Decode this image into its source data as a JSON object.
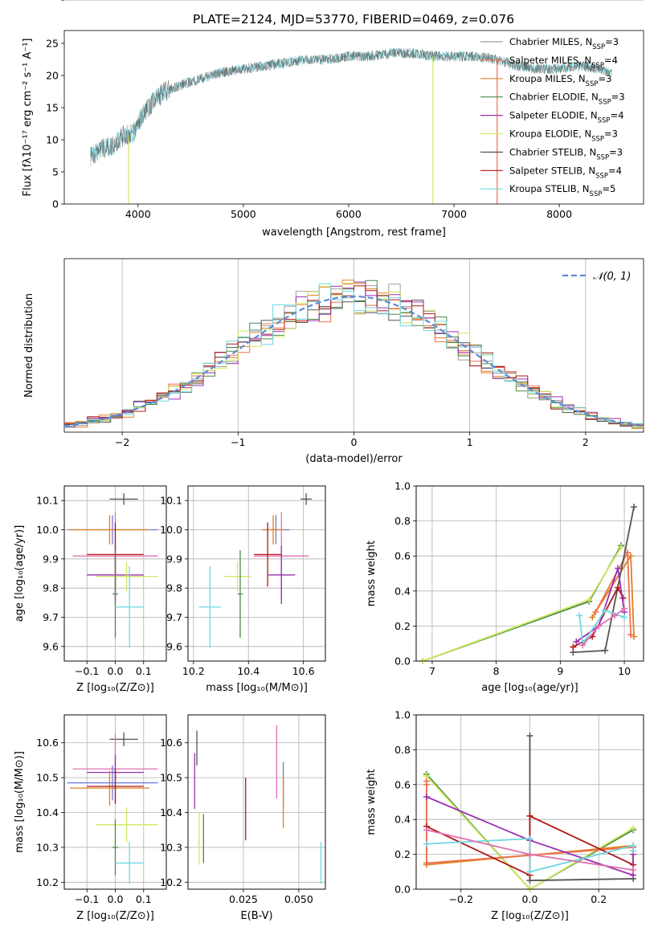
{
  "title": "PLATE=2124, MJD=53770, FIBERID=0469, z=0.076",
  "colors": {
    "chabrier_miles": "#9e9e9e",
    "salpeter_miles": "#f07050",
    "kroupa_miles": "#e08020",
    "chabrier_elodie": "#4a8a4a",
    "salpeter_elodie": "#9a30b0",
    "kroupa_elodie": "#d0e860",
    "chabrier_stelib": "#555555",
    "salpeter_stelib": "#b01818",
    "kroupa_stelib": "#70d8e0",
    "normal_curve": "#5b8ad6",
    "pink": "#e070b0",
    "blue": "#6878e0"
  },
  "chart_data": [
    {
      "id": "spectrum",
      "type": "line",
      "title": "PLATE=2124, MJD=53770, FIBERID=0469, z=0.076",
      "xlabel": "wavelength [Angstrom, rest frame]",
      "ylabel": "Flux [fλ10⁻¹⁷ erg cm⁻² s⁻¹ A⁻¹]",
      "xlim": [
        3300,
        8800
      ],
      "ylim": [
        0,
        27
      ],
      "xticks": [
        "4000",
        "5000",
        "6000",
        "7000",
        "8000"
      ],
      "yticks": [
        "0",
        "5",
        "10",
        "15",
        "20",
        "25"
      ],
      "legend_position": "right",
      "legend": [
        {
          "label": "Chabrier MILES, N",
          "sub": "SSP",
          "tail": "=3",
          "color": "chabrier_miles"
        },
        {
          "label": "Salpeter MILES, N",
          "sub": "SSP",
          "tail": "=4",
          "color": "salpeter_miles"
        },
        {
          "label": "Kroupa MILES, N",
          "sub": "SSP",
          "tail": "=3",
          "color": "kroupa_miles"
        },
        {
          "label": "Chabrier ELODIE, N",
          "sub": "SSP",
          "tail": "=3",
          "color": "chabrier_elodie"
        },
        {
          "label": "Salpeter ELODIE, N",
          "sub": "SSP",
          "tail": "=4",
          "color": "salpeter_elodie"
        },
        {
          "label": "Kroupa ELODIE, N",
          "sub": "SSP",
          "tail": "=3",
          "color": "kroupa_elodie"
        },
        {
          "label": "Chabrier STELIB, N",
          "sub": "SSP",
          "tail": "=3",
          "color": "chabrier_stelib"
        },
        {
          "label": "Salpeter STELIB, N",
          "sub": "SSP",
          "tail": "=4",
          "color": "salpeter_stelib"
        },
        {
          "label": "Kroupa STELIB, N",
          "sub": "SSP",
          "tail": "=5",
          "color": "kroupa_stelib"
        }
      ],
      "envelope": {
        "x": [
          3550,
          3650,
          3750,
          3850,
          3950,
          4050,
          4150,
          4250,
          4400,
          4600,
          4800,
          5000,
          5200,
          5400,
          5600,
          5800,
          6000,
          6200,
          6400,
          6600,
          6800,
          7000,
          7200,
          7400,
          7600,
          7800,
          8000,
          8200,
          8400,
          8500
        ],
        "y": [
          7.5,
          8.5,
          9.0,
          10.5,
          11.0,
          14.0,
          16.0,
          17.5,
          18.5,
          19.5,
          20.5,
          21.0,
          21.5,
          22.0,
          22.5,
          22.5,
          23.0,
          23.0,
          23.5,
          23.5,
          23.0,
          23.0,
          23.0,
          22.5,
          21.5,
          21.0,
          21.0,
          21.5,
          21.0,
          20.5
        ]
      },
      "dips": [
        {
          "x": 3910,
          "y": 0,
          "color": "kroupa_elodie"
        },
        {
          "x": 6800,
          "y": 0,
          "color": "kroupa_elodie"
        },
        {
          "x": 7410,
          "y": 0,
          "color": "salpeter_miles"
        }
      ]
    },
    {
      "id": "residuals",
      "type": "histogram",
      "xlabel": "(data-model)/error",
      "ylabel": "Normed distribution",
      "xlim": [
        -2.5,
        2.5
      ],
      "ylim": [
        0,
        0.51
      ],
      "xticks": [
        {
          "v": -2,
          "t": "−2"
        },
        {
          "v": -1,
          "t": "−1"
        },
        {
          "v": 0,
          "t": "0"
        },
        {
          "v": 1,
          "t": "1"
        },
        {
          "v": 2,
          "t": "2"
        }
      ],
      "yticks": [
        "0.0",
        "0.1",
        "0.2",
        "0.3",
        "0.4",
        "0.5"
      ],
      "legend": "𝒩(0, 1)",
      "bin_width": 0.1,
      "series_colors": [
        "chabrier_miles",
        "salpeter_miles",
        "kroupa_miles",
        "chabrier_elodie",
        "salpeter_elodie",
        "kroupa_elodie",
        "chabrier_stelib",
        "salpeter_stelib",
        "kroupa_stelib"
      ]
    },
    {
      "id": "age-vs-z",
      "type": "errorbar",
      "xlabel": "Z [log₁₀(Z/Z⊙)]",
      "ylabel": "age  [log₁₀(age/yr)]",
      "xlim": [
        -0.18,
        0.18
      ],
      "ylim": [
        9.55,
        10.15
      ],
      "xticks": [
        {
          "v": -0.1,
          "t": "−0.1"
        },
        {
          "v": 0.0,
          "t": "0.0"
        },
        {
          "v": 0.1,
          "t": "0.1"
        }
      ],
      "yticks": [
        {
          "v": 9.6,
          "t": "9.6"
        },
        {
          "v": 9.7,
          "t": "9.7"
        },
        {
          "v": 9.8,
          "t": "9.8"
        },
        {
          "v": 9.9,
          "t": "9.9"
        },
        {
          "v": 10.0,
          "t": "10.0"
        },
        {
          "v": 10.1,
          "t": "10.1"
        }
      ],
      "points": [
        {
          "x": 0.03,
          "y": 10.105,
          "xerr": 0.05,
          "yerr": 0.02,
          "color": "chabrier_stelib"
        },
        {
          "x": -0.01,
          "y": 10.0,
          "xerr": 0.16,
          "yerr": 0.05,
          "color": "blue"
        },
        {
          "x": -0.02,
          "y": 10.0,
          "xerr": 0.14,
          "yerr": 0.05,
          "color": "kroupa_miles"
        },
        {
          "x": 0.0,
          "y": 9.91,
          "xerr": 0.15,
          "yerr": 0.15,
          "color": "pink"
        },
        {
          "x": 0.0,
          "y": 9.915,
          "xerr": 0.1,
          "yerr": 0.11,
          "color": "salpeter_stelib"
        },
        {
          "x": 0.0,
          "y": 9.845,
          "xerr": 0.1,
          "yerr": 0.1,
          "color": "salpeter_elodie"
        },
        {
          "x": 0.04,
          "y": 9.84,
          "xerr": 0.11,
          "yerr": 0.05,
          "color": "kroupa_elodie"
        },
        {
          "x": 0.0,
          "y": 9.78,
          "xerr": 0.01,
          "yerr": 0.15,
          "color": "chabrier_elodie"
        },
        {
          "x": 0.05,
          "y": 9.735,
          "xerr": 0.05,
          "yerr": 0.14,
          "color": "kroupa_stelib"
        }
      ]
    },
    {
      "id": "age-vs-mass",
      "type": "errorbar",
      "xlabel": "mass [log₁₀(M/M⊙)]",
      "ylabel": "",
      "xlim": [
        10.18,
        10.68
      ],
      "ylim": [
        9.55,
        10.15
      ],
      "xticks": [
        {
          "v": 10.2,
          "t": "10.2"
        },
        {
          "v": 10.4,
          "t": "10.4"
        },
        {
          "v": 10.6,
          "t": "10.6"
        }
      ],
      "yticks": [
        {
          "v": 9.6,
          "t": "9.6"
        },
        {
          "v": 9.7,
          "t": "9.7"
        },
        {
          "v": 9.8,
          "t": "9.8"
        },
        {
          "v": 9.9,
          "t": "9.9"
        },
        {
          "v": 10.0,
          "t": "10.0"
        },
        {
          "v": 10.1,
          "t": "10.1"
        }
      ],
      "points": [
        {
          "x": 10.61,
          "y": 10.105,
          "xerr": 0.02,
          "yerr": 0.02,
          "color": "chabrier_stelib"
        },
        {
          "x": 10.5,
          "y": 10.0,
          "xerr": 0.05,
          "yerr": 0.05,
          "color": "blue"
        },
        {
          "x": 10.49,
          "y": 10.0,
          "xerr": 0.04,
          "yerr": 0.05,
          "color": "kroupa_miles"
        },
        {
          "x": 10.52,
          "y": 9.91,
          "xerr": 0.1,
          "yerr": 0.15,
          "color": "pink"
        },
        {
          "x": 10.47,
          "y": 9.915,
          "xerr": 0.05,
          "yerr": 0.11,
          "color": "salpeter_stelib"
        },
        {
          "x": 10.52,
          "y": 9.845,
          "xerr": 0.05,
          "yerr": 0.1,
          "color": "salpeter_elodie"
        },
        {
          "x": 10.36,
          "y": 9.84,
          "xerr": 0.05,
          "yerr": 0.05,
          "color": "kroupa_elodie"
        },
        {
          "x": 10.37,
          "y": 9.78,
          "xerr": 0.01,
          "yerr": 0.15,
          "color": "chabrier_elodie"
        },
        {
          "x": 10.26,
          "y": 9.735,
          "xerr": 0.04,
          "yerr": 0.14,
          "color": "kroupa_stelib"
        }
      ]
    },
    {
      "id": "weight-vs-age",
      "type": "line",
      "xlabel": "age  [log₁₀(age/yr)]",
      "ylabel": "mass weight",
      "xlim": [
        6.75,
        10.3
      ],
      "ylim": [
        0,
        1
      ],
      "xticks": [
        {
          "v": 7,
          "t": "7"
        },
        {
          "v": 8,
          "t": "8"
        },
        {
          "v": 9,
          "t": "9"
        },
        {
          "v": 10,
          "t": "10"
        }
      ],
      "yticks": [
        {
          "v": 0,
          "t": "0.0"
        },
        {
          "v": 0.2,
          "t": "0.2"
        },
        {
          "v": 0.4,
          "t": "0.4"
        },
        {
          "v": 0.6,
          "t": "0.6"
        },
        {
          "v": 0.8,
          "t": "0.8"
        },
        {
          "v": 1.0,
          "t": "1.0"
        }
      ],
      "series": [
        {
          "color": "chabrier_elodie",
          "x": [
            6.85,
            9.45,
            9.95
          ],
          "y": [
            0.0,
            0.34,
            0.66
          ]
        },
        {
          "color": "kroupa_elodie",
          "x": [
            6.85,
            9.45,
            9.95
          ],
          "y": [
            0.0,
            0.35,
            0.65
          ]
        },
        {
          "color": "kroupa_miles",
          "x": [
            9.5,
            10.1,
            10.15
          ],
          "y": [
            0.25,
            0.6,
            0.14
          ]
        },
        {
          "color": "salpeter_miles",
          "x": [
            9.55,
            10.05,
            10.1
          ],
          "y": [
            0.28,
            0.62,
            0.15
          ]
        },
        {
          "color": "chabrier_stelib",
          "x": [
            9.2,
            9.7,
            10.15
          ],
          "y": [
            0.05,
            0.06,
            0.88
          ]
        },
        {
          "color": "salpeter_stelib",
          "x": [
            9.2,
            9.5,
            9.9,
            9.98
          ],
          "y": [
            0.08,
            0.14,
            0.42,
            0.36
          ]
        },
        {
          "color": "salpeter_elodie",
          "x": [
            9.25,
            9.6,
            9.9,
            10.0
          ],
          "y": [
            0.11,
            0.2,
            0.53,
            0.28
          ]
        },
        {
          "color": "kroupa_stelib",
          "x": [
            9.3,
            9.35,
            9.7,
            10.0
          ],
          "y": [
            0.26,
            0.1,
            0.29,
            0.25
          ]
        },
        {
          "color": "pink",
          "x": [
            9.35,
            9.6,
            9.85,
            10.0
          ],
          "y": [
            0.09,
            0.2,
            0.26,
            0.3
          ]
        }
      ]
    },
    {
      "id": "mass-vs-z",
      "type": "errorbar",
      "xlabel": "Z [log₁₀(Z/Z⊙)]",
      "ylabel": "mass [log₁₀(M/M⊙)]",
      "xlim": [
        -0.18,
        0.18
      ],
      "ylim": [
        10.18,
        10.68
      ],
      "xticks": [
        {
          "v": -0.1,
          "t": "−0.1"
        },
        {
          "v": 0.0,
          "t": "0.0"
        },
        {
          "v": 0.1,
          "t": "0.1"
        }
      ],
      "yticks": [
        {
          "v": 10.2,
          "t": "10.2"
        },
        {
          "v": 10.3,
          "t": "10.3"
        },
        {
          "v": 10.4,
          "t": "10.4"
        },
        {
          "v": 10.5,
          "t": "10.5"
        },
        {
          "v": 10.6,
          "t": "10.6"
        }
      ],
      "points": [
        {
          "x": 0.03,
          "y": 10.61,
          "xerr": 0.05,
          "yerr": 0.02,
          "color": "chabrier_stelib"
        },
        {
          "x": 0.0,
          "y": 10.525,
          "xerr": 0.15,
          "yerr": 0.1,
          "color": "pink"
        },
        {
          "x": 0.0,
          "y": 10.515,
          "xerr": 0.1,
          "yerr": 0.05,
          "color": "salpeter_elodie"
        },
        {
          "x": -0.01,
          "y": 10.485,
          "xerr": 0.16,
          "yerr": 0.05,
          "color": "blue"
        },
        {
          "x": -0.02,
          "y": 10.47,
          "xerr": 0.14,
          "yerr": 0.05,
          "color": "kroupa_miles"
        },
        {
          "x": 0.0,
          "y": 10.475,
          "xerr": 0.1,
          "yerr": 0.05,
          "color": "salpeter_stelib"
        },
        {
          "x": 0.04,
          "y": 10.365,
          "xerr": 0.11,
          "yerr": 0.05,
          "color": "kroupa_elodie"
        },
        {
          "x": 0.0,
          "y": 10.3,
          "xerr": 0.01,
          "yerr": 0.08,
          "color": "chabrier_elodie"
        },
        {
          "x": 0.05,
          "y": 10.255,
          "xerr": 0.05,
          "yerr": 0.06,
          "color": "kroupa_stelib"
        }
      ]
    },
    {
      "id": "mass-vs-ebv",
      "type": "errorbar",
      "xlabel": "E(B-V)",
      "ylabel": "",
      "xlim": [
        0.0,
        0.062
      ],
      "ylim": [
        10.18,
        10.68
      ],
      "xticks": [
        {
          "v": 0.025,
          "t": "0.025"
        },
        {
          "v": 0.05,
          "t": "0.050"
        }
      ],
      "yticks": [
        {
          "v": 10.2,
          "t": "10.2"
        },
        {
          "v": 10.3,
          "t": "10.3"
        },
        {
          "v": 10.4,
          "t": "10.4"
        },
        {
          "v": 10.5,
          "t": "10.5"
        },
        {
          "v": 10.6,
          "t": "10.6"
        }
      ],
      "points": [
        {
          "x": 0.004,
          "y": 10.585,
          "xerr": 0,
          "yerr": 0.05,
          "color": "chabrier_stelib"
        },
        {
          "x": 0.003,
          "y": 10.49,
          "xerr": 0,
          "yerr": 0.08,
          "color": "salpeter_elodie"
        },
        {
          "x": 0.005,
          "y": 10.325,
          "xerr": 0,
          "yerr": 0.075,
          "color": "kroupa_elodie"
        },
        {
          "x": 0.007,
          "y": 10.325,
          "xerr": 0,
          "yerr": 0.07,
          "color": "chabrier_elodie"
        },
        {
          "x": 0.026,
          "y": 10.41,
          "xerr": 0,
          "yerr": 0.09,
          "color": "salpeter_stelib"
        },
        {
          "x": 0.04,
          "y": 10.545,
          "xerr": 0,
          "yerr": 0.105,
          "color": "pink"
        },
        {
          "x": 0.043,
          "y": 10.48,
          "xerr": 0,
          "yerr": 0.065,
          "color": "blue"
        },
        {
          "x": 0.043,
          "y": 10.43,
          "xerr": 0,
          "yerr": 0.075,
          "color": "kroupa_miles"
        },
        {
          "x": 0.06,
          "y": 10.255,
          "xerr": 0,
          "yerr": 0.06,
          "color": "kroupa_stelib"
        }
      ]
    },
    {
      "id": "weight-vs-z",
      "type": "line",
      "xlabel": "Z [log₁₀(Z/Z⊙)]",
      "ylabel": "mass weight",
      "xlim": [
        -0.33,
        0.33
      ],
      "ylim": [
        0,
        1
      ],
      "xticks": [
        {
          "v": -0.2,
          "t": "−0.2"
        },
        {
          "v": 0.0,
          "t": "0.0"
        },
        {
          "v": 0.2,
          "t": "0.2"
        }
      ],
      "yticks": [
        {
          "v": 0,
          "t": "0.0"
        },
        {
          "v": 0.2,
          "t": "0.2"
        },
        {
          "v": 0.4,
          "t": "0.4"
        },
        {
          "v": 0.6,
          "t": "0.6"
        },
        {
          "v": 0.8,
          "t": "0.8"
        },
        {
          "v": 1.0,
          "t": "1.0"
        }
      ],
      "series": [
        {
          "color": "chabrier_elodie",
          "x": [
            -0.3,
            0.0,
            0.3
          ],
          "y": [
            0.66,
            0.0,
            0.34
          ]
        },
        {
          "color": "kroupa_elodie",
          "x": [
            -0.3,
            0.0,
            0.3
          ],
          "y": [
            0.65,
            0.0,
            0.35
          ]
        },
        {
          "color": "kroupa_miles",
          "x": [
            -0.3,
            -0.3,
            0.3,
            0.3
          ],
          "y": [
            0.6,
            0.14,
            0.25,
            0.25
          ]
        },
        {
          "color": "salpeter_miles",
          "x": [
            -0.3,
            -0.3,
            0.3,
            0.3
          ],
          "y": [
            0.62,
            0.15,
            0.24,
            0.24
          ]
        },
        {
          "color": "chabrier_stelib",
          "x": [
            0.0,
            0.0,
            0.3
          ],
          "y": [
            0.88,
            0.05,
            0.06
          ]
        },
        {
          "color": "salpeter_stelib",
          "x": [
            -0.3,
            0.0,
            0.0,
            0.3,
            0.3
          ],
          "y": [
            0.36,
            0.08,
            0.42,
            0.14,
            0.22
          ]
        },
        {
          "color": "salpeter_elodie",
          "x": [
            -0.3,
            0.0,
            0.3,
            0.3
          ],
          "y": [
            0.53,
            0.28,
            0.08,
            0.2
          ]
        },
        {
          "color": "kroupa_stelib",
          "x": [
            -0.3,
            0.0,
            0.0,
            0.3,
            0.3
          ],
          "y": [
            0.26,
            0.29,
            0.1,
            0.25,
            0.22
          ]
        },
        {
          "color": "pink",
          "x": [
            -0.3,
            0.0,
            0.3
          ],
          "y": [
            0.34,
            0.2,
            0.11
          ]
        }
      ]
    }
  ]
}
